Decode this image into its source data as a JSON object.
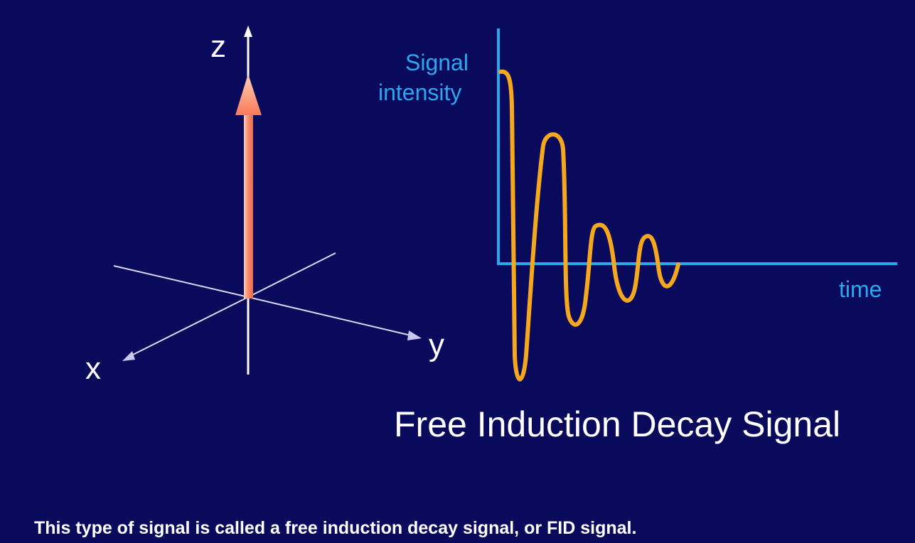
{
  "coordinate_diagram": {
    "z_label": "z",
    "x_label": "x",
    "y_label": "y",
    "magnetization_arrow_color": "#f88060"
  },
  "fid_plot": {
    "ylabel_line1": "Signal",
    "ylabel_line2": "intensity",
    "xlabel": "time",
    "axis_color": "#2aa8ee",
    "signal_color": "#f5a81e"
  },
  "title": "Free Induction Decay Signal",
  "caption": "This type of signal is called a free induction decay signal, or FID signal."
}
